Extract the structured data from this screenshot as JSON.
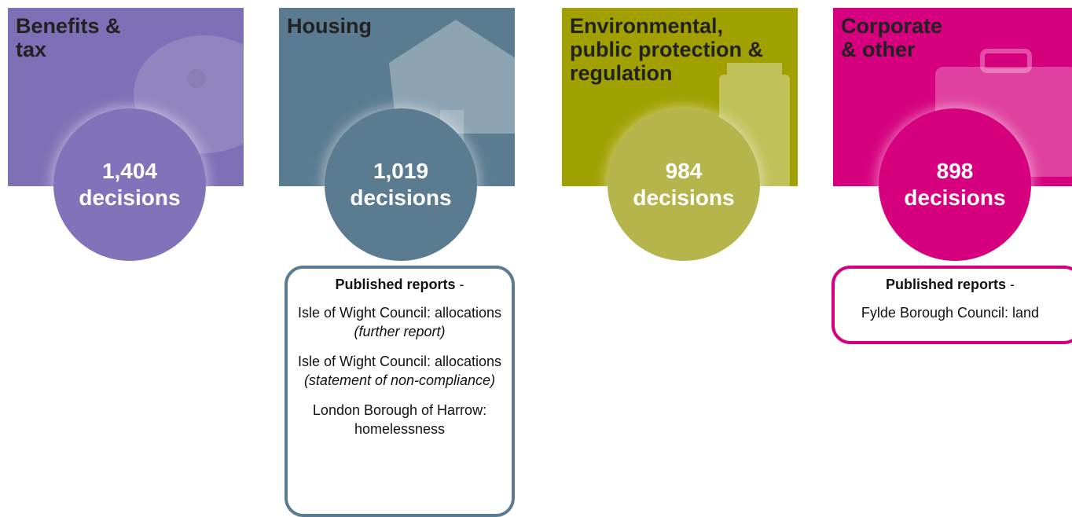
{
  "panels": [
    {
      "title": [
        "Benefits &",
        "tax"
      ],
      "count": "1,404",
      "unit": "decisions",
      "color": "#7e70b6",
      "circle_color": "#8272ba"
    },
    {
      "title": [
        "Housing"
      ],
      "count": "1,019",
      "unit": "decisions",
      "color": "#5b7b91",
      "circle_color": "#5b7b91",
      "reports": {
        "heading": "Published reports",
        "dash": "-",
        "items": [
          [
            {
              "text": "Isle of Wight Council: allocations "
            },
            {
              "text": "(further report)",
              "italic": true
            }
          ],
          [
            {
              "text": "Isle of Wight Council: allocations "
            },
            {
              "text": "(statement of non-compliance)",
              "italic": true
            }
          ],
          [
            {
              "text": "London Borough of Harrow: homelessness"
            }
          ]
        ]
      }
    },
    {
      "title": [
        "Environmental,",
        "public protection &",
        "regulation"
      ],
      "count": "984",
      "unit": "decisions",
      "color": "#a0a000",
      "circle_color": "#b5b54c"
    },
    {
      "title": [
        "Corporate",
        "& other"
      ],
      "count": "898",
      "unit": "decisions",
      "color": "#d6007f",
      "circle_color": "#d6007f",
      "reports": {
        "heading": "Published reports",
        "dash": "-",
        "items": [
          [
            {
              "text": "Fylde Borough Council: land"
            }
          ]
        ]
      }
    }
  ]
}
